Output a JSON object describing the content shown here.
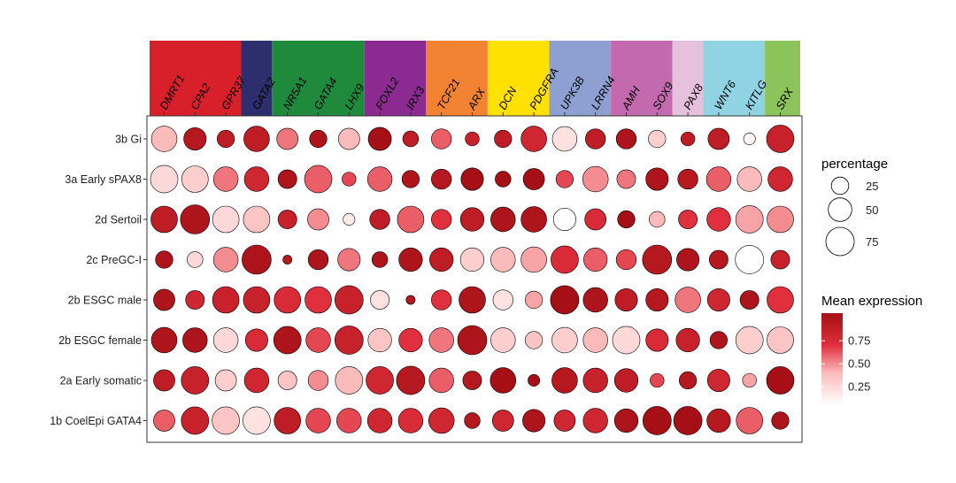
{
  "chart_data": {
    "type": "dotplot",
    "genes": [
      "DMRT1",
      "CPA2",
      "GPR37",
      "GATA2",
      "NR5A1",
      "GATA4",
      "LHX9",
      "FOXL2",
      "IRX3",
      "TCF21",
      "ARX",
      "DCN",
      "PDGFRA",
      "UPK3B",
      "LRRN4",
      "AMH",
      "SOX9",
      "PAX8",
      "WNT6",
      "KITLG",
      "SRX"
    ],
    "gene_groups": [
      {
        "color": "#d7202a",
        "genes": [
          "DMRT1",
          "CPA2",
          "GPR37"
        ]
      },
      {
        "color": "#2c2e6e",
        "genes": [
          "GATA2"
        ]
      },
      {
        "color": "#1f8a3c",
        "genes": [
          "NR5A1",
          "GATA4",
          "LHX9"
        ]
      },
      {
        "color": "#8b2b91",
        "genes": [
          "FOXL2",
          "IRX3"
        ]
      },
      {
        "color": "#f28332",
        "genes": [
          "TCF21",
          "ARX"
        ]
      },
      {
        "color": "#ffe100",
        "genes": [
          "DCN",
          "PDGFRA"
        ]
      },
      {
        "color": "#8ea0d2",
        "genes": [
          "UPK3B",
          "LRRN4"
        ]
      },
      {
        "color": "#c26aad",
        "genes": [
          "AMH",
          "SOX9"
        ]
      },
      {
        "color": "#e6c1dd",
        "genes": [
          "PAX8"
        ]
      },
      {
        "color": "#90d4e4",
        "genes": [
          "WNT6",
          "KITLG"
        ]
      },
      {
        "color": "#8bc45a",
        "genes": [
          "SRX"
        ]
      }
    ],
    "cell_types": [
      "3b Gi",
      "3a Early sPAX8",
      "2d Sertoil",
      "2c PreGC-I",
      "2b ESGC male",
      "2b ESGC female",
      "2a Early somatic",
      "1b CoelEpi GATA4"
    ],
    "percentage": [
      [
        60,
        45,
        25,
        60,
        40,
        25,
        40,
        48,
        20,
        35,
        15,
        25,
        60,
        55,
        35,
        35,
        25,
        15,
        40,
        10,
        70
      ],
      [
        70,
        65,
        55,
        55,
        30,
        70,
        15,
        55,
        25,
        35,
        45,
        20,
        40,
        25,
        60,
        30,
        45,
        35,
        55,
        55,
        55
      ],
      [
        65,
        80,
        65,
        65,
        30,
        40,
        10,
        35,
        65,
        35,
        50,
        55,
        60,
        45,
        40,
        25,
        20,
        30,
        50,
        70,
        65
      ],
      [
        25,
        20,
        55,
        80,
        5,
        35,
        45,
        20,
        50,
        50,
        50,
        55,
        60,
        70,
        50,
        35,
        80,
        45,
        30,
        75,
        30
      ],
      [
        40,
        30,
        65,
        65,
        65,
        65,
        75,
        30,
        5,
        35,
        65,
        35,
        25,
        75,
        55,
        45,
        45,
        60,
        45,
        30,
        65
      ],
      [
        60,
        55,
        55,
        45,
        70,
        55,
        75,
        50,
        50,
        55,
        80,
        55,
        25,
        60,
        55,
        70,
        45,
        50,
        25,
        70,
        65
      ],
      [
        40,
        70,
        40,
        55,
        30,
        35,
        70,
        70,
        75,
        55,
        30,
        60,
        10,
        60,
        55,
        50,
        15,
        25,
        45,
        15,
        70
      ],
      [
        40,
        70,
        70,
        70,
        65,
        55,
        55,
        55,
        55,
        60,
        20,
        40,
        45,
        40,
        55,
        50,
        75,
        75,
        50,
        65,
        25
      ]
    ],
    "mean_expression": [
      [
        0.35,
        0.9,
        0.85,
        0.85,
        0.5,
        0.95,
        0.35,
        1.0,
        0.85,
        0.55,
        0.8,
        0.85,
        0.75,
        0.15,
        0.85,
        0.95,
        0.25,
        0.85,
        0.85,
        0.05,
        0.8
      ],
      [
        0.2,
        0.25,
        0.5,
        0.75,
        0.95,
        0.55,
        0.6,
        0.55,
        0.95,
        0.9,
        1.0,
        1.0,
        1.0,
        0.6,
        0.45,
        0.5,
        0.95,
        0.9,
        0.55,
        0.35,
        0.75
      ],
      [
        0.85,
        0.95,
        0.2,
        0.3,
        0.8,
        0.45,
        0.1,
        0.85,
        0.55,
        0.65,
        0.85,
        0.95,
        0.95,
        0.0,
        0.7,
        1.0,
        0.35,
        0.65,
        0.65,
        0.4,
        0.45
      ],
      [
        0.95,
        0.2,
        0.45,
        0.95,
        0.9,
        0.95,
        0.5,
        0.95,
        0.95,
        0.85,
        0.25,
        0.35,
        0.4,
        0.7,
        0.55,
        0.6,
        0.9,
        0.95,
        0.9,
        0.0,
        0.8
      ],
      [
        0.95,
        0.75,
        0.8,
        0.8,
        0.7,
        0.65,
        0.8,
        0.15,
        0.9,
        0.65,
        0.95,
        0.15,
        0.4,
        1.0,
        0.95,
        0.85,
        0.9,
        0.5,
        0.75,
        0.95,
        0.65
      ],
      [
        0.95,
        0.95,
        0.2,
        0.7,
        0.95,
        0.6,
        0.8,
        0.3,
        0.65,
        0.5,
        0.95,
        0.25,
        0.3,
        0.25,
        0.35,
        0.2,
        0.7,
        0.8,
        0.95,
        0.25,
        0.3
      ],
      [
        0.85,
        0.8,
        0.25,
        0.75,
        0.3,
        0.45,
        0.35,
        0.75,
        0.9,
        0.55,
        0.9,
        1.0,
        1.0,
        0.9,
        0.8,
        0.85,
        0.6,
        0.9,
        0.75,
        0.4,
        1.0
      ],
      [
        0.55,
        0.8,
        0.3,
        0.15,
        0.85,
        0.6,
        0.6,
        0.75,
        0.7,
        0.75,
        0.9,
        0.75,
        0.95,
        0.75,
        0.75,
        0.95,
        1.0,
        1.0,
        0.9,
        0.55,
        0.95
      ]
    ],
    "size_legend": {
      "title": "percentage",
      "breaks": [
        25,
        50,
        75
      ],
      "labels": [
        "25",
        "50",
        "75"
      ]
    },
    "color_legend": {
      "title": "Mean expression",
      "breaks": [
        0.75,
        0.5,
        0.25
      ],
      "labels": [
        "0.75",
        "0.50",
        "0.25"
      ],
      "low_color": "#ffffff",
      "high_color": "#a50f15"
    }
  }
}
